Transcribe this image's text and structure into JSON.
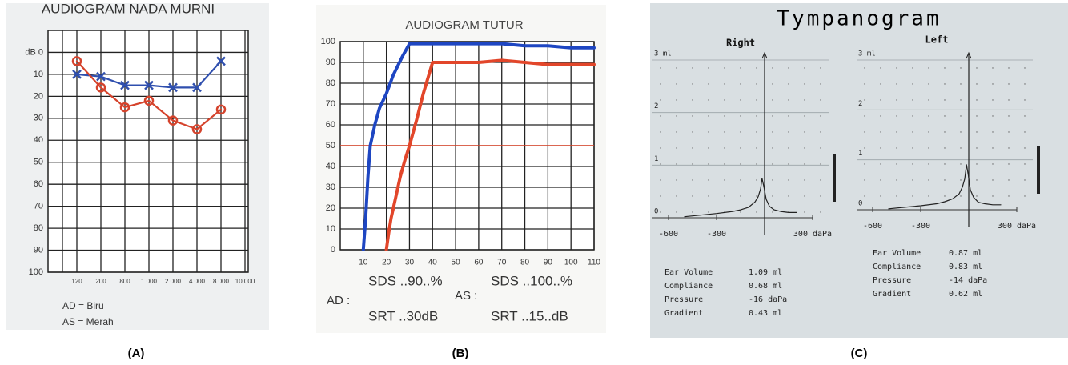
{
  "captions": [
    "(A)",
    "(B)",
    "(C)"
  ],
  "tympanogram_title": "Tympanogram",
  "chart_data": [
    {
      "type": "line",
      "title": "AUDIOGRAM NADA MURNI",
      "categories": [
        "120",
        "200",
        "800",
        "1.000",
        "2.000",
        "4.000",
        "8.000",
        "10.000"
      ],
      "series": [
        {
          "name": "AD = Biru",
          "color": "#2f4fae",
          "marker": "x",
          "values": [
            10,
            11,
            15,
            15,
            16,
            16,
            4,
            null
          ]
        },
        {
          "name": "AS = Merah",
          "color": "#d5432c",
          "marker": "o",
          "values": [
            4,
            16,
            25,
            22,
            31,
            35,
            26,
            null
          ]
        }
      ],
      "ylim": [
        -10,
        100
      ],
      "invert_y": true,
      "yticks": [
        {
          "value": 0,
          "label": "dB 0"
        },
        10,
        20,
        30,
        40,
        50,
        60,
        70,
        80,
        90,
        100
      ],
      "grid": true
    },
    {
      "type": "line",
      "title": "AUDIOGRAM TUTUR",
      "xlim": [
        0,
        110
      ],
      "xticks": [
        10,
        20,
        30,
        40,
        50,
        60,
        70,
        80,
        90,
        100,
        110
      ],
      "ylim": [
        0,
        100
      ],
      "yticks": [
        0,
        10,
        20,
        30,
        40,
        50,
        60,
        70,
        80,
        90,
        100
      ],
      "grid": true,
      "series": [
        {
          "color": "#1e46c2",
          "x": [
            10,
            11,
            12,
            13,
            15,
            17,
            20,
            23,
            27,
            30,
            35,
            40,
            50,
            60,
            70,
            80,
            90,
            100,
            110
          ],
          "values": [
            0,
            15,
            35,
            50,
            60,
            68,
            75,
            84,
            93,
            99,
            99,
            99,
            99,
            99,
            99,
            98,
            98,
            97,
            97
          ]
        },
        {
          "color": "#e2462a",
          "x": [
            20,
            21,
            22,
            24,
            26,
            28,
            30,
            33,
            36,
            40,
            45,
            50,
            60,
            70,
            80,
            90,
            100,
            110
          ],
          "values": [
            0,
            8,
            15,
            25,
            35,
            43,
            50,
            62,
            75,
            90,
            90,
            90,
            90,
            91,
            90,
            89,
            89,
            89
          ]
        }
      ],
      "hline": {
        "value": 50,
        "color": "#e2462a"
      },
      "annotations": [
        "AD :",
        "SDS ..90..%",
        "SRT ..30dB",
        "AS :",
        "SDS ..100..%",
        "SRT ..15..dB"
      ]
    },
    {
      "type": "line",
      "title": "Right",
      "xlim": [
        -700,
        400
      ],
      "xticks": [
        -600,
        -300,
        {
          "value": 300,
          "label": "300 daPa"
        }
      ],
      "ylim": [
        0,
        3
      ],
      "yticks": [
        0,
        1,
        2,
        {
          "value": 3,
          "label": "3 ml"
        }
      ],
      "grid": true,
      "series": [
        {
          "color": "#222222",
          "x": [
            -500,
            -400,
            -300,
            -200,
            -150,
            -100,
            -60,
            -40,
            -25,
            -16,
            -5,
            10,
            30,
            60,
            100,
            150,
            200
          ],
          "values": [
            0.02,
            0.05,
            0.08,
            0.12,
            0.15,
            0.2,
            0.3,
            0.4,
            0.55,
            0.75,
            0.6,
            0.35,
            0.22,
            0.15,
            0.12,
            0.1,
            0.1
          ]
        }
      ],
      "stats": [
        {
          "label": "Ear Volume",
          "value": "1.09 ml"
        },
        {
          "label": "Compliance",
          "value": "0.68 ml"
        },
        {
          "label": "Pressure",
          "value": "-16 daPa"
        },
        {
          "label": "Gradient",
          "value": "0.43 ml"
        }
      ]
    },
    {
      "type": "line",
      "title": "Left",
      "xlim": [
        -700,
        400
      ],
      "xticks": [
        -600,
        -300,
        {
          "value": 300,
          "label": "300 daPa"
        }
      ],
      "ylim": [
        0,
        3
      ],
      "yticks": [
        0,
        1,
        2,
        {
          "value": 3,
          "label": "3 ml"
        }
      ],
      "grid": true,
      "series": [
        {
          "color": "#222222",
          "x": [
            -500,
            -400,
            -300,
            -200,
            -150,
            -100,
            -60,
            -40,
            -25,
            -14,
            -3,
            10,
            30,
            60,
            100,
            150,
            200
          ],
          "values": [
            0.02,
            0.05,
            0.08,
            0.12,
            0.16,
            0.22,
            0.32,
            0.45,
            0.62,
            0.9,
            0.7,
            0.4,
            0.25,
            0.15,
            0.12,
            0.1,
            0.1
          ]
        }
      ],
      "stats": [
        {
          "label": "Ear Volume",
          "value": "0.87 ml"
        },
        {
          "label": "Compliance",
          "value": "0.83 ml"
        },
        {
          "label": "Pressure",
          "value": "-14 daPa"
        },
        {
          "label": "Gradient",
          "value": "0.62 ml"
        }
      ]
    }
  ]
}
